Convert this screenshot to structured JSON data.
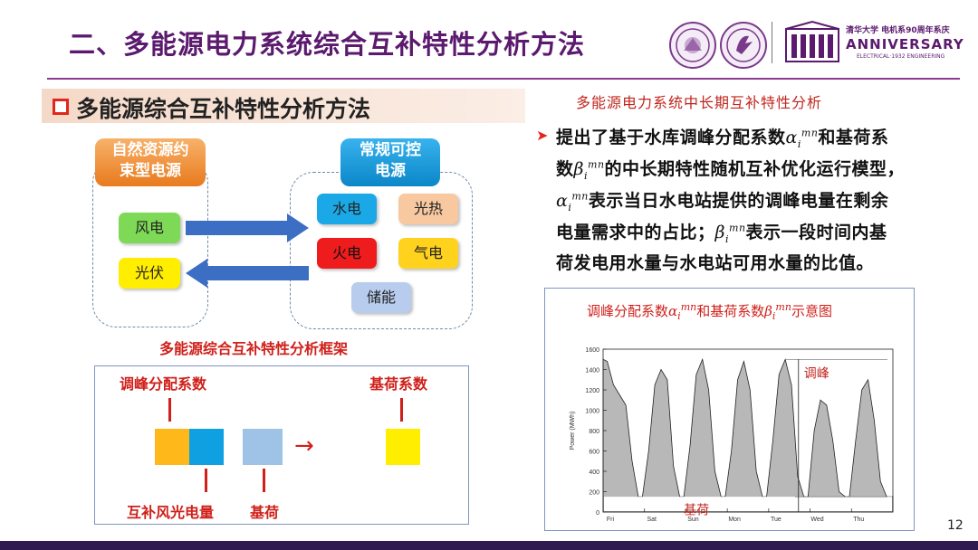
{
  "header": {
    "title": "二、多能源电力系统综合互补特性分析方法",
    "anniv_line1": "清华大学 电机系90周年系庆",
    "anniv_big": "ANNIVERSARY",
    "anniv_sub": "ELECTRICAL·1932 ENGINEERING"
  },
  "section": {
    "title": "多能源综合互补特性分析方法"
  },
  "left_diagram": {
    "natural_label": "自然资源约束型电源",
    "natural_line1": "自然资源约",
    "natural_line2": "束型电源",
    "conventional_line1": "常规可控",
    "conventional_line2": "电源",
    "wind": "风电",
    "solar": "光伏",
    "hydro": "水电",
    "solar_thermal": "光热",
    "thermal": "火电",
    "gas": "气电",
    "storage": "储能",
    "framework_caption": "多能源综合互补特性分析框架"
  },
  "framework": {
    "peak_coef": "调峰分配系数",
    "base_coef": "基荷系数",
    "comp_label": "互补风光电量",
    "base_label": "基荷",
    "arrow": "→"
  },
  "right": {
    "subtitle": "多能源电力系统中长期互补特性分析",
    "bullet": "➤",
    "line1_a": "提出了基于水库调峰分配系数",
    "line1_b": "和基荷系",
    "line2_a": "数",
    "line2_b": "的中长期特性随机互补优化运行模型，",
    "line3_b": "表示当日水电站提供的调峰电量在剩余",
    "line4_a": "电量需求中的占比；",
    "line4_b": "表示一段时间内基",
    "line5": "荷发电用水量与水电站可用水量的比值。",
    "alpha": "α",
    "beta": "β",
    "mn": "mn",
    "i": "i",
    "chart_caption_a": "调峰分配系数",
    "chart_caption_b": "和基荷系数",
    "chart_caption_c": "示意图"
  },
  "chart_data": {
    "type": "area",
    "ylabel": "Power (MWh)",
    "ylim": [
      0,
      1600
    ],
    "yticks": [
      0,
      200,
      400,
      600,
      800,
      1000,
      1200,
      1400,
      1600
    ],
    "categories": [
      "Fri",
      "Sat",
      "Sun",
      "Mon",
      "Tue",
      "Wed",
      "Thu"
    ],
    "x": [
      0,
      0.1,
      0.25,
      0.4,
      0.55,
      0.7,
      0.85,
      0.95,
      1.1,
      1.25,
      1.4,
      1.55,
      1.7,
      1.85,
      1.95,
      2.1,
      2.25,
      2.4,
      2.55,
      2.7,
      2.85,
      2.95,
      3.1,
      3.25,
      3.4,
      3.55,
      3.7,
      3.85,
      3.95,
      4.1,
      4.25,
      4.4,
      4.55,
      4.7,
      4.85,
      4.95,
      5.1,
      5.25,
      5.4,
      5.55,
      5.7,
      5.85,
      5.95,
      6.1,
      6.25,
      6.4,
      6.55,
      6.7,
      6.85,
      7.0
    ],
    "values": [
      1500,
      1480,
      1250,
      1150,
      1050,
      500,
      150,
      150,
      600,
      1250,
      1400,
      1300,
      450,
      150,
      150,
      650,
      1350,
      1500,
      1200,
      400,
      150,
      150,
      600,
      1300,
      1480,
      1200,
      400,
      150,
      150,
      700,
      1350,
      1500,
      1250,
      350,
      150,
      150,
      800,
      1100,
      1050,
      700,
      200,
      150,
      150,
      700,
      1200,
      1300,
      900,
      300,
      150,
      150
    ],
    "baseload": 150,
    "annotations": [
      "调峰",
      "基荷"
    ]
  },
  "footer": {
    "page": "12"
  },
  "colors": {
    "accent_purple": "#5b1a6e",
    "red": "#d0201a",
    "orange": "#f0a020",
    "blue": "#0ea0e0",
    "yellow": "#ffee00",
    "green": "#7ed957"
  }
}
